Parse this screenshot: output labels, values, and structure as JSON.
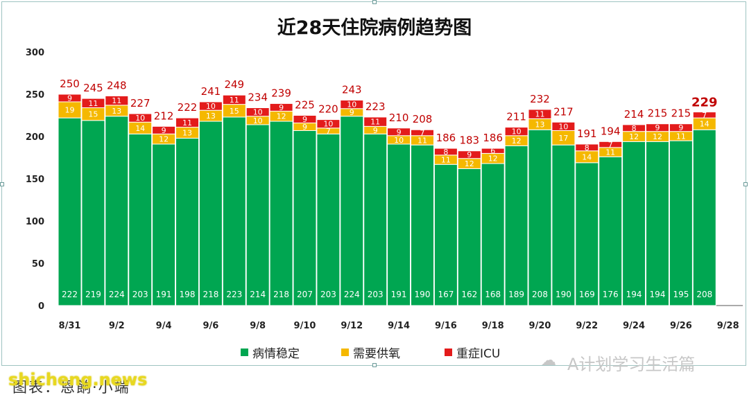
{
  "title": "近28天住院病例趋势图",
  "colors": {
    "stable": "#00a651",
    "oxygen": "#f5b800",
    "icu": "#e31b1b",
    "total_label": "#c00000",
    "segment_label": "#ffffff"
  },
  "legend": [
    {
      "key": "stable",
      "label": "病情稳定"
    },
    {
      "key": "oxygen",
      "label": "需要供氧"
    },
    {
      "key": "icu",
      "label": "重症ICU"
    }
  ],
  "watermark": "A计划学习生活篇",
  "watermark_icon": "wechat-icon",
  "site": "shicheng.news",
  "caption": "图表：恩餉·小端",
  "chart_data": {
    "type": "bar",
    "stacked": true,
    "title": "近28天住院病例趋势图",
    "xlabel": "",
    "ylabel": "",
    "ylim": [
      0,
      300
    ],
    "yticks": [
      0,
      50,
      100,
      150,
      200,
      250,
      300
    ],
    "grid": false,
    "legend_position": "bottom",
    "categories": [
      "8/31",
      "9/1",
      "9/2",
      "9/3",
      "9/4",
      "9/5",
      "9/6",
      "9/7",
      "9/8",
      "9/9",
      "9/10",
      "9/11",
      "9/12",
      "9/13",
      "9/14",
      "9/15",
      "9/16",
      "9/17",
      "9/18",
      "9/19",
      "9/20",
      "9/21",
      "9/22",
      "9/23",
      "9/24",
      "9/25",
      "9/26",
      "9/27"
    ],
    "x_tick_labels": [
      "8/31",
      "9/2",
      "9/4",
      "9/6",
      "9/8",
      "9/10",
      "9/12",
      "9/14",
      "9/16",
      "9/18",
      "9/20",
      "9/22",
      "9/24",
      "9/26",
      "9/28"
    ],
    "series": [
      {
        "name": "病情稳定",
        "values": [
          222,
          219,
          224,
          203,
          191,
          198,
          218,
          223,
          214,
          218,
          207,
          203,
          224,
          203,
          191,
          190,
          167,
          162,
          168,
          189,
          208,
          190,
          169,
          176,
          194,
          194,
          195,
          208
        ]
      },
      {
        "name": "需要供氧",
        "values": [
          19,
          15,
          13,
          14,
          12,
          13,
          13,
          15,
          10,
          12,
          9,
          7,
          9,
          9,
          10,
          11,
          11,
          12,
          12,
          12,
          13,
          17,
          14,
          11,
          12,
          12,
          11,
          14
        ]
      },
      {
        "name": "重症ICU",
        "values": [
          9,
          11,
          11,
          10,
          9,
          11,
          10,
          11,
          10,
          9,
          9,
          10,
          10,
          11,
          9,
          7,
          8,
          9,
          6,
          10,
          11,
          10,
          8,
          7,
          8,
          9,
          9,
          7
        ]
      }
    ],
    "totals": [
      250,
      245,
      248,
      227,
      212,
      222,
      241,
      249,
      234,
      239,
      225,
      220,
      243,
      223,
      210,
      208,
      186,
      183,
      186,
      211,
      232,
      217,
      191,
      194,
      214,
      215,
      215,
      229
    ]
  }
}
